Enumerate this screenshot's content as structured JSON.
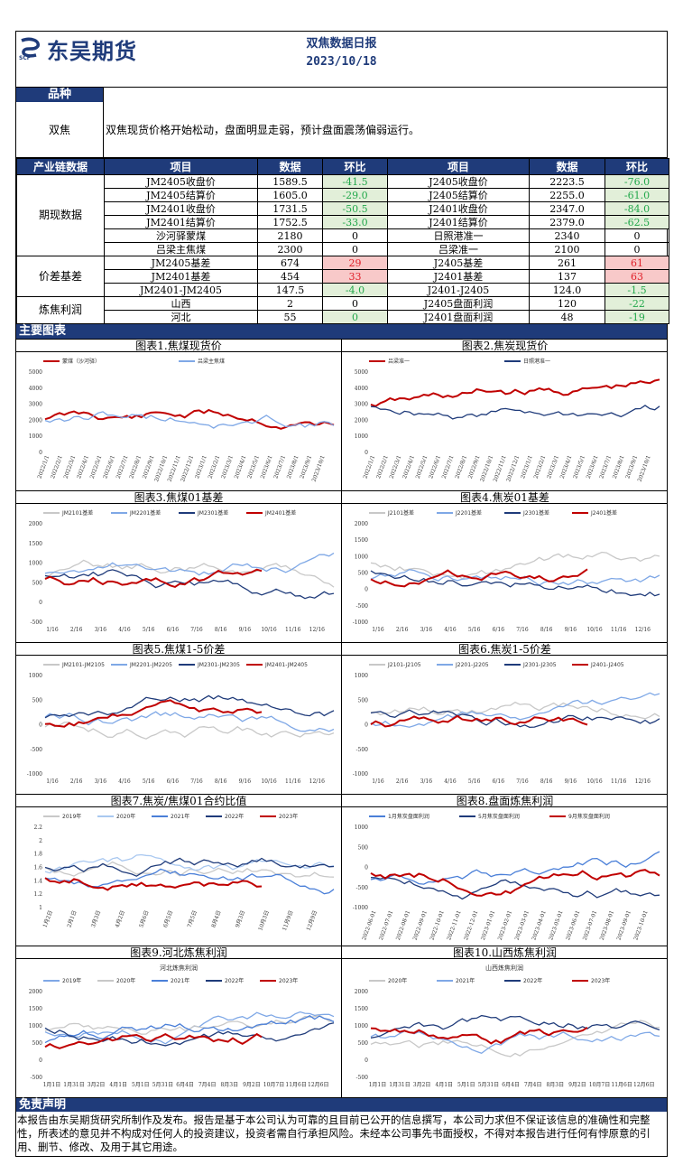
{
  "header": {
    "company": "东吴期货",
    "title": "双焦数据日报",
    "date": "2023/10/18"
  },
  "variety": {
    "bar_label": "品种",
    "name": "双焦",
    "comment": "双焦现货价格开始松动，盘面明显走弱，预计盘面震荡偏弱运行。"
  },
  "table": {
    "section": "产业链数据",
    "headers": [
      "项目",
      "数据",
      "环比",
      "项目",
      "数据",
      "环比"
    ],
    "groups": [
      {
        "label": "期现数据",
        "rows": [
          [
            [
              "JM2405收盘价"
            ],
            [
              "1589.5"
            ],
            [
              "-41.5",
              "g"
            ],
            [
              "J2405收盘价"
            ],
            [
              "2223.5"
            ],
            [
              "-76.0",
              "g"
            ]
          ],
          [
            [
              "JM2405结算价"
            ],
            [
              "1605.0"
            ],
            [
              "-29.0",
              "g"
            ],
            [
              "J2405结算价"
            ],
            [
              "2255.0"
            ],
            [
              "-61.0",
              "g"
            ]
          ],
          [
            [
              "JM2401收盘价"
            ],
            [
              "1731.5"
            ],
            [
              "-50.5",
              "g"
            ],
            [
              "J2401收盘价"
            ],
            [
              "2347.0"
            ],
            [
              "-84.0",
              "g"
            ]
          ],
          [
            [
              "JM2401结算价"
            ],
            [
              "1752.5"
            ],
            [
              "-33.0",
              "g"
            ],
            [
              "J2401结算价"
            ],
            [
              "2379.0"
            ],
            [
              "-62.5",
              "g"
            ]
          ],
          [
            [
              "沙河驿蒙煤"
            ],
            [
              "2180"
            ],
            [
              "0"
            ],
            [
              "日照港准一"
            ],
            [
              "2340"
            ],
            [
              "0"
            ]
          ],
          [
            [
              "吕梁主焦煤"
            ],
            [
              "2300"
            ],
            [
              "0"
            ],
            [
              "吕梁准一"
            ],
            [
              "2100"
            ],
            [
              "0"
            ]
          ]
        ]
      },
      {
        "label": "价差基差",
        "rows": [
          [
            [
              "JM2405基差"
            ],
            [
              "674"
            ],
            [
              "29",
              "r"
            ],
            [
              "J2405基差"
            ],
            [
              "261"
            ],
            [
              "61",
              "r"
            ]
          ],
          [
            [
              "JM2401基差"
            ],
            [
              "454"
            ],
            [
              "33",
              "r"
            ],
            [
              "J2401基差"
            ],
            [
              "137"
            ],
            [
              "63",
              "r"
            ]
          ],
          [
            [
              "JM2401-JM2405"
            ],
            [
              "147.5"
            ],
            [
              "-4.0",
              "g"
            ],
            [
              "J2401-J2405"
            ],
            [
              "124.0"
            ],
            [
              "-1.5",
              "g"
            ]
          ]
        ]
      },
      {
        "label": "炼焦利润",
        "rows": [
          [
            [
              "山西"
            ],
            [
              "2"
            ],
            [
              "0"
            ],
            [
              "J2405盘面利润"
            ],
            [
              "120"
            ],
            [
              "-22",
              "g"
            ]
          ],
          [
            [
              "河北"
            ],
            [
              "55"
            ],
            [
              "0",
              "g"
            ],
            [
              "J2401盘面利润"
            ],
            [
              "48"
            ],
            [
              "-19",
              "g"
            ]
          ]
        ]
      }
    ]
  },
  "charts_section": "主要图表",
  "colors": {
    "navy": "#1f3b7a",
    "red": "#c00000",
    "lightblue": "#7fa8e6",
    "gray": "#c8c8c8",
    "midblue": "#4a7fd8"
  },
  "charts": [
    {
      "title": "图表1.焦煤现货价",
      "legend": [
        "蒙煤（沙河驿）",
        "吕梁主焦煤"
      ],
      "legend_colors": [
        "#c00000",
        "#7fa8e6"
      ],
      "yticks": [
        "5000",
        "4000",
        "3000",
        "2000",
        "1000",
        "0"
      ],
      "xticks": [
        "2022/1/1",
        "2022/2/1",
        "2022/3/1",
        "2022/4/1",
        "2022/5/1",
        "2022/6/1",
        "2022/7/1",
        "2022/8/1",
        "2022/9/1",
        "2022/10/1",
        "2022/11/1",
        "2022/12/1",
        "2023/1/1",
        "2023/2/1",
        "2023/3/1",
        "2023/4/1",
        "2023/5/1",
        "2023/6/1",
        "2023/7/1",
        "2023/8/1",
        "2023/9/1",
        "2023/10/1"
      ],
      "rotate": true
    },
    {
      "title": "图表2.焦炭现货价",
      "legend": [
        "吕梁准一",
        "日照港准一"
      ],
      "legend_colors": [
        "#c00000",
        "#1f3b7a"
      ],
      "yticks": [
        "5000",
        "4000",
        "3000",
        "2000",
        "1000",
        "0"
      ],
      "xticks": [
        "2022/1/1",
        "2022/2/1",
        "2022/3/1",
        "2022/4/1",
        "2022/5/1",
        "2022/6/1",
        "2022/7/1",
        "2022/8/1",
        "2022/9/1",
        "2022/10/1",
        "2022/11/1",
        "2022/12/1",
        "2023/1/1",
        "2023/2/1",
        "2023/3/1",
        "2023/4/1",
        "2023/5/1",
        "2023/6/1",
        "2023/7/1",
        "2023/8/1",
        "2023/9/1",
        "2023/10/1"
      ],
      "rotate": true
    },
    {
      "title": "图表3.焦煤01基差",
      "legend": [
        "JM2101基差",
        "JM2201基差",
        "JM2301基差",
        "JM2401基差"
      ],
      "legend_colors": [
        "#c8c8c8",
        "#7fa8e6",
        "#1f3b7a",
        "#c00000"
      ],
      "yticks": [
        "2000",
        "1500",
        "1000",
        "500",
        "0",
        "-500"
      ],
      "xticks": [
        "1/16",
        "2/16",
        "3/16",
        "4/16",
        "5/16",
        "6/16",
        "7/16",
        "8/16",
        "9/16",
        "10/16",
        "11/16",
        "12/16"
      ]
    },
    {
      "title": "图表4.焦炭01基差",
      "legend": [
        "J2101基差",
        "J2201基差",
        "J2301基差",
        "J2401基差"
      ],
      "legend_colors": [
        "#c8c8c8",
        "#7fa8e6",
        "#1f3b7a",
        "#c00000"
      ],
      "yticks": [
        "2000",
        "1500",
        "1000",
        "500",
        "0",
        "-500",
        "-1000"
      ],
      "xticks": [
        "1/16",
        "2/16",
        "3/16",
        "4/16",
        "5/16",
        "6/16",
        "7/16",
        "8/16",
        "9/16",
        "10/16",
        "11/16",
        "12/16"
      ]
    },
    {
      "title": "图表5.焦煤1-5价差",
      "legend": [
        "JM2101-JM2105",
        "JM2201-JM2205",
        "JM2301-JM2305",
        "JM2401-JM2405"
      ],
      "legend_colors": [
        "#c8c8c8",
        "#7fa8e6",
        "#1f3b7a",
        "#c00000"
      ],
      "yticks": [
        "1000",
        "500",
        "0",
        "-500",
        "-1000"
      ],
      "xticks": [
        "1/16",
        "2/16",
        "3/16",
        "4/16",
        "5/16",
        "6/16",
        "7/16",
        "8/16",
        "9/16",
        "10/16",
        "11/16",
        "12/16"
      ]
    },
    {
      "title": "图表6.焦炭1-5价差",
      "legend": [
        "J2101-J2105",
        "J2201-J2205",
        "J2301-J2305",
        "J2401-J2405"
      ],
      "legend_colors": [
        "#c8c8c8",
        "#7fa8e6",
        "#1f3b7a",
        "#c00000"
      ],
      "yticks": [
        "1000",
        "500",
        "0",
        "-500",
        "-1000"
      ],
      "xticks": [
        "1/16",
        "2/16",
        "3/16",
        "4/16",
        "5/16",
        "6/16",
        "7/16",
        "8/16",
        "9/16",
        "10/16",
        "11/16",
        "12/16"
      ]
    },
    {
      "title": "图表7.焦炭/焦煤01合约比值",
      "legend": [
        "2019年",
        "2020年",
        "2021年",
        "2022年",
        "2023年"
      ],
      "legend_colors": [
        "#c8c8c8",
        "#a9c8f0",
        "#4a7fd8",
        "#1f3b7a",
        "#c00000"
      ],
      "yticks": [
        "2.2",
        "2",
        "1.8",
        "1.6",
        "1.4",
        "1.2",
        "1"
      ],
      "xticks": [
        "1月2日",
        "2月1日",
        "3月3日",
        "4月2日",
        "5月6日",
        "6月5日",
        "7月5日",
        "8月4日",
        "9月3日",
        "10月3日",
        "11月9日",
        "12月9日"
      ],
      "rotate": true
    },
    {
      "title": "图表8.盘面炼焦利润",
      "legend": [
        "1月焦炭盘面利润",
        "5月焦炭盘面利润",
        "9月焦炭盘面利润"
      ],
      "legend_colors": [
        "#4a7fd8",
        "#1f3b7a",
        "#c00000"
      ],
      "yticks": [
        "1000",
        "500",
        "0",
        "-500",
        "-1000"
      ],
      "xticks": [
        "2022-06-01",
        "2022-07-01",
        "2022-08-01",
        "2022-09-01",
        "2022-10-01",
        "2022-11-01",
        "2022-12-01",
        "2023-01-01",
        "2023-02-01",
        "2023-03-01",
        "2023-04-01",
        "2023-05-01",
        "2023-06-01",
        "2023-07-01",
        "2023-08-01",
        "2023-09-01",
        "2023-10-01"
      ],
      "rotate": true
    },
    {
      "title": "图表9.河北炼焦利润",
      "subtitle": "河北炼焦利润",
      "legend": [
        "2019年",
        "2020年",
        "2021年",
        "2022年",
        "2023年"
      ],
      "legend_colors": [
        "#7fa8e6",
        "#c8c8c8",
        "#4a7fd8",
        "#1f3b7a",
        "#c00000"
      ],
      "yticks": [
        "2000",
        "1500",
        "1000",
        "500",
        "0",
        "-500"
      ],
      "xticks": [
        "1月1日",
        "1月31日",
        "3月2日",
        "4月1日",
        "5月1日",
        "5月31日",
        "6月4日",
        "7月4日",
        "8月3日",
        "9月2日",
        "10月7日",
        "11月6日",
        "12月6日"
      ]
    },
    {
      "title": "图表10.山西炼焦利润",
      "subtitle": "山西炼焦利润",
      "legend": [
        "2020年",
        "2021年",
        "2022年",
        "2023年"
      ],
      "legend_colors": [
        "#c8c8c8",
        "#7fa8e6",
        "#1f3b7a",
        "#c00000"
      ],
      "yticks": [
        "2000",
        "1500",
        "1000",
        "500",
        "0",
        "-500"
      ],
      "xticks": [
        "1月1日",
        "1月31日",
        "3月2日",
        "4月1日",
        "5月1日",
        "5月31日",
        "6月4日",
        "7月4日",
        "8月3日",
        "9月2日",
        "10月7日",
        "11月6日",
        "12月6日"
      ]
    }
  ],
  "disclaimer": {
    "title": "免责声明",
    "text": "本报告由东吴期货研究所制作及发布。报告是基于本公司认为可靠的且目前已公开的信息撰写，本公司力求但不保证该信息的准确性和完整性，所表述的意见并不构成对任何人的投资建议，投资者需自行承担风险。未经本公司事先书面授权，不得对本报告进行任何有悖原意的引用、删节、修改、及用于其它用途。"
  }
}
